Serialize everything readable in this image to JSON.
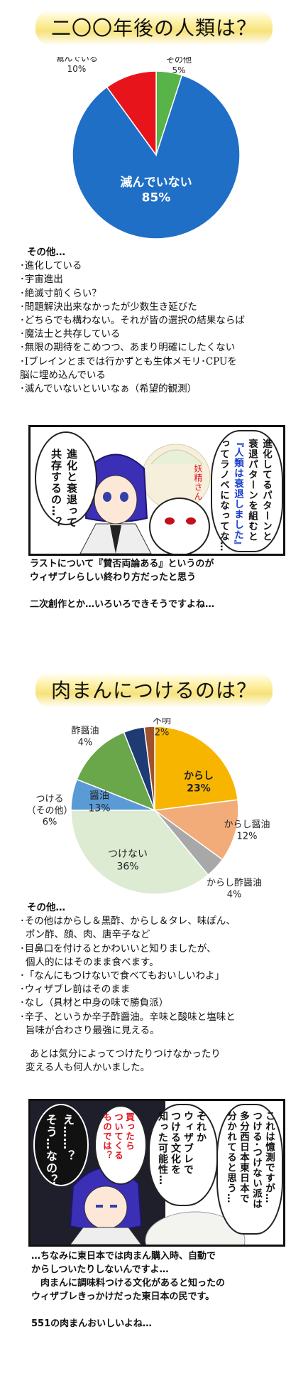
{
  "section1": {
    "title": "二〇〇年後の人類は？",
    "chart": {
      "type": "pie",
      "slices": [
        {
          "label": "滅んでいない",
          "value": 85,
          "pct": "85%",
          "color": "#1f6fc6"
        },
        {
          "label": "その他",
          "value": 5,
          "pct": "5%",
          "color": "#58b348"
        },
        {
          "label": "滅んでいる",
          "value": 10,
          "pct": "10%",
          "color": "#e8141c"
        }
      ]
    },
    "other_heading": "その他…",
    "other_items": [
      "･進化している",
      "･宇宙進出",
      "･絶滅寸前くらい？",
      "･問題解決出来なかったが少数生き延びた",
      "･どちらでも構わない。それが皆の選択の結果ならば",
      "･魔法士と共存している",
      "･無限の期待をこめつつ、あまり明確にしたくない",
      "･Iブレインとまでは行かずとも生体メモリ･CPUを",
      "脳に埋め込んでいる",
      "･滅んでいないといいなぁ（希望的観測）"
    ],
    "comic": {
      "bubble_left_1": "進化と衰退って",
      "bubble_left_2": "共存するの…？",
      "bubble_right": [
        "進化してるパターンと",
        "衰退パターンを組むと",
        "『人類は衰退しました』",
        "ってラノベになってな…"
      ],
      "fairy_label": "妖精さん"
    },
    "caption": [
      "ラストについて『賛否両論ある』というのが",
      "ウィザブレらしい終わり方だったと思う",
      "",
      "二次創作とか…いろいろできそうですよね…"
    ]
  },
  "section2": {
    "title": "肉まんにつけるのは？",
    "chart": {
      "type": "pie",
      "slices": [
        {
          "label": "からし",
          "value": 23,
          "pct": "23%",
          "color": "#f7b500"
        },
        {
          "label": "からし醤油",
          "value": 12,
          "pct": "12%",
          "color": "#f2ac7a"
        },
        {
          "label": "からし酢醤油",
          "value": 4,
          "pct": "4%",
          "color": "#a8a8a8"
        },
        {
          "label": "つけない",
          "value": 36,
          "pct": "36%",
          "color": "#dcebd2"
        },
        {
          "label": "つける（その他）",
          "value": 6,
          "pct": "6%",
          "color": "#5b9bd5"
        },
        {
          "label": "醤油",
          "value": 13,
          "pct": "13%",
          "color": "#6aa64a"
        },
        {
          "label": "酢醤油",
          "value": 4,
          "pct": "4%",
          "color": "#1f3b73"
        },
        {
          "label": "不明",
          "value": 2,
          "pct": "2%",
          "color": "#a0522d"
        }
      ]
    },
    "other_heading": "その他…",
    "other_items": [
      "･その他はからし＆黒酢、からし＆タレ、味ぽん、",
      "ポン酢、顔、肉、唐辛子など",
      "･目鼻口を付けるとかわいいと知りましたが、",
      "個人的にはそのまま食べます。",
      "･「なんにもつけないで食べてもおいしいわよ」",
      "･ウィザブレ前はそのまま",
      "･なし（具材と中身の味で勝負派）",
      "･辛子、というか辛子酢醤油。辛味と酸味と塩味と",
      "旨味が合わさり最強に見える。",
      "",
      "あとは気分によってつけたりつけなかったり",
      "変える人も何人かいました。"
    ],
    "comic": {
      "bubble_right": [
        "これは憶測ですが…",
        "つける･つけない派は",
        "多分西日本東日本で",
        "分かれてると思う…"
      ],
      "bubble_mid": [
        "それか",
        "ウィザブレで",
        "つける文化を",
        "知った可能性…"
      ],
      "bubble_red": [
        "買ったら",
        "ついてくる",
        "ものでは？"
      ],
      "bubble_dark": [
        "え……？",
        "そう…なの？"
      ]
    },
    "caption": [
      "…ちなみに東日本では肉まん購入時、自動で",
      "からしついたりしないんですよ…",
      "　肉まんに調味料つける文化があると知ったの",
      "ウィザブレきっかけだった東日本の民です。",
      "",
      "551の肉まんおいしいよね…"
    ]
  }
}
